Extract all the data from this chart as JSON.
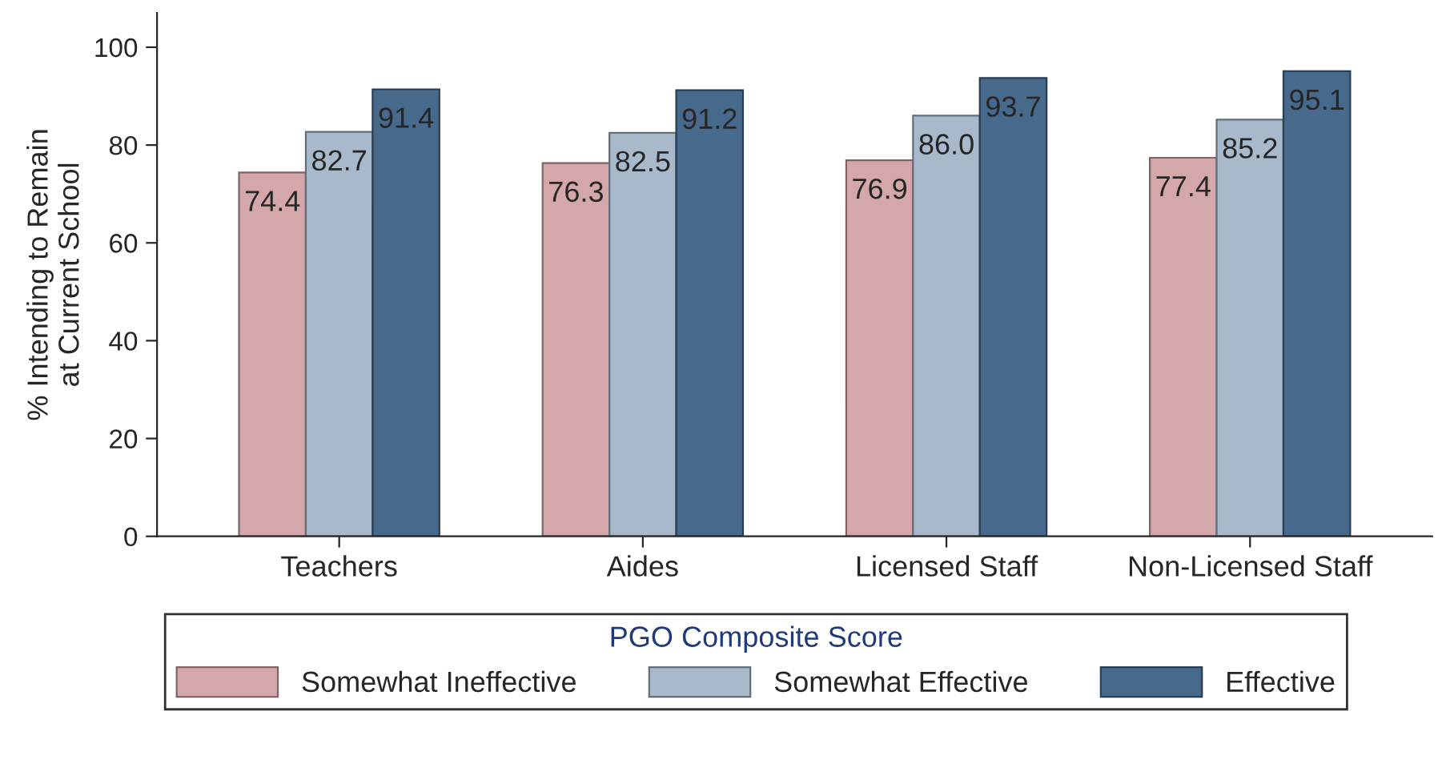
{
  "chart_data": {
    "type": "bar",
    "ylabel": "% Intending to Remain\nat Current School",
    "legend_title": "PGO Composite Score",
    "categories": [
      "Teachers",
      "Aides",
      "Licensed Staff",
      "Non-Licensed Staff"
    ],
    "series": [
      {
        "name": "Somewhat Ineffective",
        "color": "#d4a7ab",
        "values": [
          74.4,
          76.3,
          76.9,
          77.4
        ],
        "value_labels": [
          "74.4",
          "76.3",
          "76.9",
          "77.4"
        ]
      },
      {
        "name": "Somewhat Effective",
        "color": "#a7b9ca",
        "values": [
          82.7,
          82.5,
          86.0,
          85.2
        ],
        "value_labels": [
          "82.7",
          "82.5",
          "86.0",
          "85.2"
        ]
      },
      {
        "name": "Effective",
        "color": "#47698b",
        "values": [
          91.4,
          91.2,
          93.7,
          95.1
        ],
        "value_labels": [
          "91.4",
          "91.2",
          "93.7",
          "95.1"
        ]
      }
    ],
    "ylim": [
      0,
      107
    ],
    "yticks": [
      0,
      20,
      40,
      60,
      80,
      100
    ],
    "grid": false,
    "legend": "bottom"
  }
}
